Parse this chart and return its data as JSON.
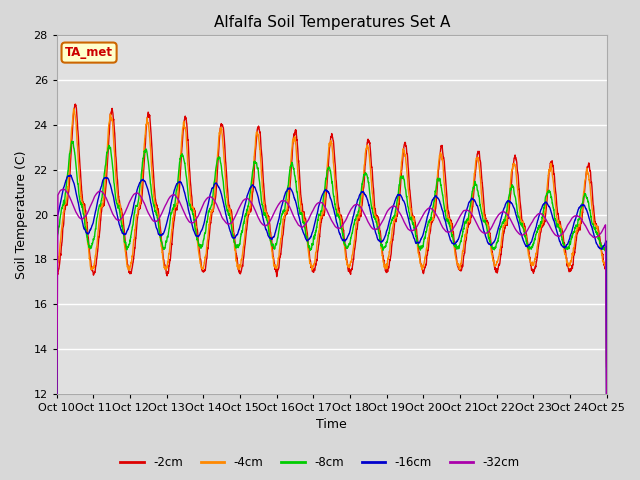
{
  "title": "Alfalfa Soil Temperatures Set A",
  "xlabel": "Time",
  "ylabel": "Soil Temperature (C)",
  "ylim": [
    12,
    28
  ],
  "annotation_text": "TA_met",
  "annotation_color": "#cc0000",
  "annotation_bg": "#ffffcc",
  "annotation_border": "#cc6600",
  "background_color": "#e0e0e0",
  "grid_color": "#ffffff",
  "fig_bg_color": "#d8d8d8",
  "series_colors": {
    "-2cm": "#dd0000",
    "-4cm": "#ff8800",
    "-8cm": "#00cc00",
    "-16cm": "#0000cc",
    "-32cm": "#aa00aa"
  },
  "x_tick_labels": [
    "Oct 10",
    "Oct 11",
    "Oct 12",
    "Oct 13",
    "Oct 14",
    "Oct 15",
    "Oct 16",
    "Oct 17",
    "Oct 18",
    "Oct 19",
    "Oct 20",
    "Oct 21",
    "Oct 22",
    "Oct 23",
    "Oct 24",
    "Oct 25"
  ],
  "x_tick_positions": [
    0,
    24,
    48,
    72,
    96,
    120,
    144,
    168,
    192,
    216,
    240,
    264,
    288,
    312,
    336,
    360
  ],
  "xlim": [
    0,
    360
  ],
  "num_points": 3601
}
